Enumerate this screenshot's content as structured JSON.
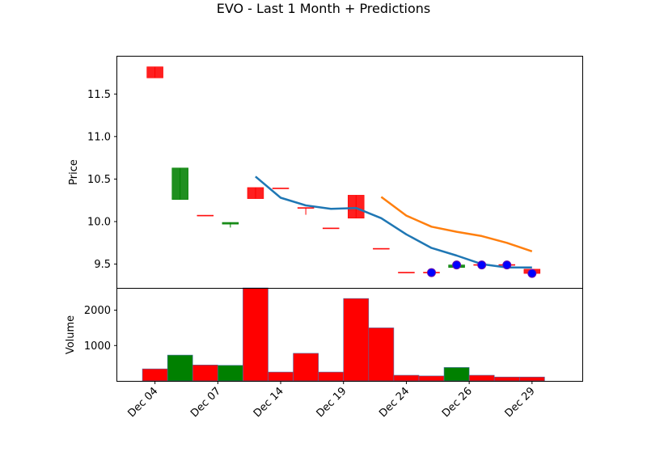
{
  "chart_data": {
    "type": "candlestick",
    "title": "EVO - Last 1 Month + Predictions",
    "price_panel": {
      "ylabel": "Price",
      "ylim": [
        9.22,
        11.94
      ],
      "yticks": [
        "9.5",
        "10.0",
        "10.5",
        "11.0",
        "11.5"
      ],
      "candles": [
        {
          "open": 11.82,
          "close": 11.69,
          "high": 11.82,
          "low": 11.69,
          "color": "#ff0000"
        },
        {
          "open": 10.26,
          "close": 10.63,
          "high": 10.63,
          "low": 10.26,
          "color": "#008000"
        },
        {
          "open": 10.075,
          "close": 10.07,
          "high": 10.075,
          "low": 10.07,
          "color": "#ff0000"
        },
        {
          "open": 9.97,
          "close": 9.99,
          "high": 9.99,
          "low": 9.93,
          "color": "#008000"
        },
        {
          "open": 10.4,
          "close": 10.27,
          "high": 10.4,
          "low": 10.27,
          "color": "#ff0000"
        },
        {
          "open": 10.395,
          "close": 10.39,
          "high": 10.395,
          "low": 10.39,
          "color": "#ff0000"
        },
        {
          "open": 10.165,
          "close": 10.16,
          "high": 10.165,
          "low": 10.08,
          "color": "#ff0000"
        },
        {
          "open": 9.925,
          "close": 9.92,
          "high": 9.925,
          "low": 9.92,
          "color": "#ff0000"
        },
        {
          "open": 10.31,
          "close": 10.04,
          "high": 10.31,
          "low": 10.04,
          "color": "#ff0000"
        },
        {
          "open": 9.685,
          "close": 9.68,
          "high": 9.685,
          "low": 9.68,
          "color": "#ff0000"
        },
        {
          "open": 9.405,
          "close": 9.4,
          "high": 9.405,
          "low": 9.4,
          "color": "#ff0000"
        },
        {
          "open": 9.405,
          "close": 9.4,
          "high": 9.405,
          "low": 9.4,
          "color": "#ff0000"
        },
        {
          "open": 9.46,
          "close": 9.49,
          "high": 9.49,
          "low": 9.45,
          "color": "#008000"
        },
        {
          "open": 9.495,
          "close": 9.49,
          "high": 9.495,
          "low": 9.49,
          "color": "#ff0000"
        },
        {
          "open": 9.495,
          "close": 9.49,
          "high": 9.495,
          "low": 9.49,
          "color": "#ff0000"
        },
        {
          "open": 9.44,
          "close": 9.39,
          "high": 9.44,
          "low": 9.39,
          "color": "#ff0000"
        }
      ],
      "series": [
        {
          "color": "#1f77b4",
          "points": [
            [
              4,
              10.53
            ],
            [
              5,
              10.28
            ],
            [
              6,
              10.19
            ],
            [
              7,
              10.15
            ],
            [
              8,
              10.16
            ],
            [
              9,
              10.04
            ],
            [
              10,
              9.85
            ],
            [
              11,
              9.69
            ],
            [
              12,
              9.6
            ],
            [
              13,
              9.5
            ],
            [
              14,
              9.46
            ],
            [
              15,
              9.46
            ]
          ]
        },
        {
          "color": "#ff7f0e",
          "points": [
            [
              9,
              10.29
            ],
            [
              10,
              10.07
            ],
            [
              11,
              9.94
            ],
            [
              12,
              9.88
            ],
            [
              13,
              9.83
            ],
            [
              14,
              9.75
            ],
            [
              15,
              9.65
            ]
          ]
        }
      ],
      "markers": [
        {
          "x": 11,
          "y": 9.4
        },
        {
          "x": 12,
          "y": 9.49
        },
        {
          "x": 13,
          "y": 9.49
        },
        {
          "x": 14,
          "y": 9.49
        },
        {
          "x": 15,
          "y": 9.39
        }
      ],
      "marker_color": "#0000ff"
    },
    "volume_panel": {
      "ylabel": "Volume",
      "ylim": [
        0,
        2630
      ],
      "yticks": [
        "1000",
        "2000"
      ],
      "values": [
        340,
        730,
        450,
        440,
        2630,
        250,
        780,
        250,
        2330,
        1500,
        160,
        140,
        380,
        160,
        110,
        110
      ],
      "colors": [
        "#ff0000",
        "#008000",
        "#ff0000",
        "#008000",
        "#ff0000",
        "#ff0000",
        "#ff0000",
        "#ff0000",
        "#ff0000",
        "#ff0000",
        "#ff0000",
        "#ff0000",
        "#008000",
        "#ff0000",
        "#ff0000",
        "#ff0000"
      ]
    },
    "x_ticks": [
      {
        "label": "Dec 04",
        "pos": 0
      },
      {
        "label": "Dec 07",
        "pos": 2.5
      },
      {
        "label": "Dec 14",
        "pos": 5
      },
      {
        "label": "Dec 19",
        "pos": 7.5
      },
      {
        "label": "Dec 24",
        "pos": 10
      },
      {
        "label": "Dec 26",
        "pos": 12.5
      },
      {
        "label": "Dec 29",
        "pos": 15
      }
    ],
    "xlim": [
      -1.5,
      17
    ]
  }
}
